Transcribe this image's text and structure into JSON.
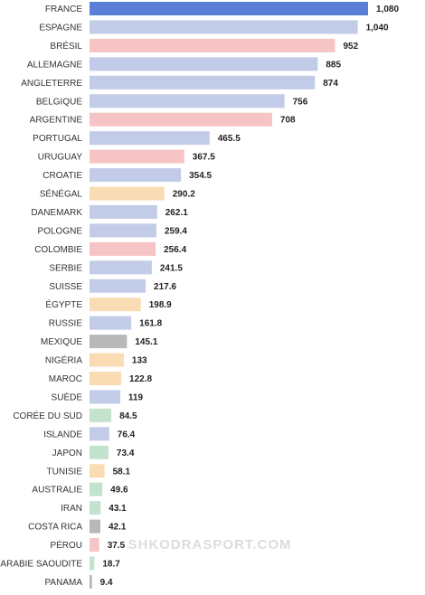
{
  "chart_data": {
    "type": "bar",
    "orientation": "horizontal",
    "categories": [
      "FRANCE",
      "ESPAGNE",
      "BRÉSIL",
      "ALLEMAGNE",
      "ANGLETERRE",
      "BELGIQUE",
      "ARGENTINE",
      "PORTUGAL",
      "URUGUAY",
      "CROATIE",
      "SÉNÉGAL",
      "DANEMARK",
      "POLOGNE",
      "COLOMBIE",
      "SERBIE",
      "SUISSE",
      "ÉGYPTE",
      "RUSSIE",
      "MEXIQUE",
      "NIGÉRIA",
      "MAROC",
      "SUÈDE",
      "CORÉE DU SUD",
      "ISLANDE",
      "JAPON",
      "TUNISIE",
      "AUSTRALIE",
      "IRAN",
      "COSTA RICA",
      "PÉROU",
      "ARABIE SAOUDITE",
      "PANAMA"
    ],
    "values": [
      1080,
      1040,
      952,
      885,
      874,
      756,
      708,
      465.5,
      367.5,
      354.5,
      290.2,
      262.1,
      259.4,
      256.4,
      241.5,
      217.6,
      198.9,
      161.8,
      145.1,
      133,
      122.8,
      119,
      84.5,
      76.4,
      73.4,
      58.1,
      49.6,
      43.1,
      42.1,
      37.5,
      18.7,
      9.4
    ],
    "value_labels": [
      "1,080",
      "1,040",
      "952",
      "885",
      "874",
      "756",
      "708",
      "465.5",
      "367.5",
      "354.5",
      "290.2",
      "262.1",
      "259.4",
      "256.4",
      "241.5",
      "217.6",
      "198.9",
      "161.8",
      "145.1",
      "133",
      "122.8",
      "119",
      "84.5",
      "76.4",
      "73.4",
      "58.1",
      "49.6",
      "43.1",
      "42.1",
      "37.5",
      "18.7",
      "9.4"
    ],
    "bar_colors": [
      "#5b7fd6",
      "#c2cbe8",
      "#f6c4c4",
      "#c2cbe8",
      "#c2cbe8",
      "#c2cbe8",
      "#f6c4c4",
      "#c2cbe8",
      "#f6c4c4",
      "#c2cbe8",
      "#f9dcb4",
      "#c2cbe8",
      "#c2cbe8",
      "#f6c4c4",
      "#c2cbe8",
      "#c2cbe8",
      "#f9dcb4",
      "#c2cbe8",
      "#b8b8b8",
      "#f9dcb4",
      "#f9dcb4",
      "#c2cbe8",
      "#c4e3cc",
      "#c2cbe8",
      "#c4e3cc",
      "#f9dcb4",
      "#c4e3cc",
      "#c4e3cc",
      "#b8b8b8",
      "#f6c4c4",
      "#c4e3cc",
      "#b8b8b8"
    ],
    "xlim": [
      0,
      1080
    ],
    "grid": false,
    "legend": "none"
  },
  "watermark": "SHKODRASPORT.COM"
}
